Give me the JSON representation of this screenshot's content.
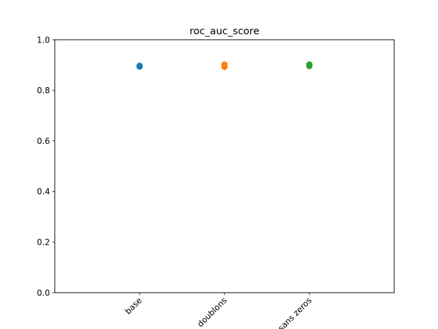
{
  "chart_data": {
    "type": "scatter",
    "title": "roc_auc_score",
    "xlabel": "",
    "ylabel": "",
    "ylim": [
      0,
      1
    ],
    "yticks": [
      "0.0",
      "0.2",
      "0.4",
      "0.6",
      "0.8",
      "1.0"
    ],
    "categories": [
      "base",
      "doublons",
      "sans zeros"
    ],
    "grid": false,
    "series": [
      {
        "category": "base",
        "color": "#1f77b4",
        "values": [
          0.894,
          0.896,
          0.897
        ]
      },
      {
        "category": "doublons",
        "color": "#ff7f0e",
        "values": [
          0.893,
          0.897,
          0.902
        ]
      },
      {
        "category": "sans zeros",
        "color": "#2ca02c",
        "values": [
          0.896,
          0.899,
          0.902
        ]
      }
    ]
  }
}
